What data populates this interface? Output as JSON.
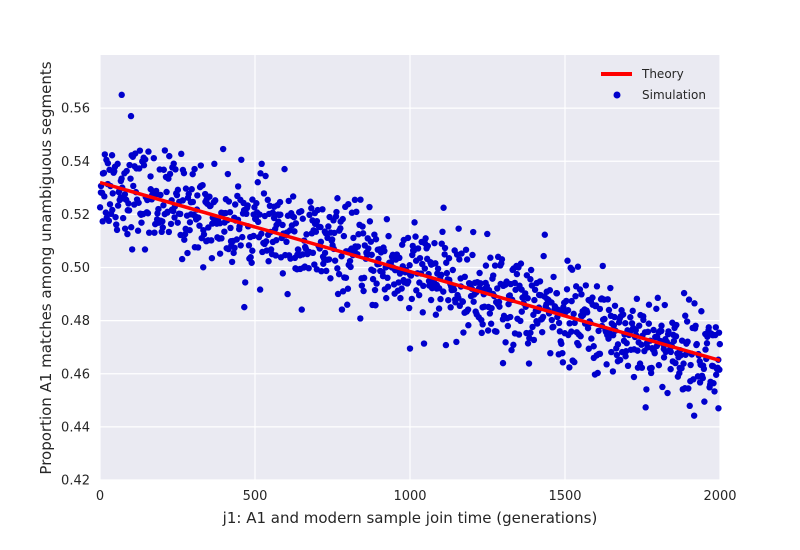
{
  "chart_data": {
    "type": "scatter",
    "xlabel": "j1: A1 and modern sample join time (generations)",
    "ylabel": "Proportion A1 matches among unambiguous segments",
    "xlim": [
      0,
      2000
    ],
    "ylim": [
      0.42,
      0.58
    ],
    "x_ticks": [
      0,
      500,
      1000,
      1500,
      2000
    ],
    "y_ticks": [
      0.42,
      0.44,
      0.46,
      0.48,
      0.5,
      0.52,
      0.54,
      0.56
    ],
    "x_tick_labels": [
      "0",
      "500",
      "1000",
      "1500",
      "2000"
    ],
    "y_tick_labels": [
      "0.42",
      "0.44",
      "0.46",
      "0.48",
      "0.50",
      "0.52",
      "0.54",
      "0.56"
    ],
    "grid": true,
    "legend_position": "top-right",
    "series": [
      {
        "name": "Theory",
        "kind": "line",
        "color": "#ff0000",
        "x": [
          0,
          2000
        ],
        "y": [
          0.532,
          0.465
        ]
      },
      {
        "name": "Simulation",
        "kind": "scatter",
        "color": "#0000cc",
        "point_count": 1000,
        "x_range": [
          0,
          2000
        ],
        "trend": {
          "y_at_x_min": 0.532,
          "y_at_x_max": 0.465
        },
        "spread_sd": 0.009,
        "notable_points": [
          {
            "x": 70,
            "y": 0.565
          },
          {
            "x": 100,
            "y": 0.557
          },
          {
            "x": 1000,
            "y": 0.4695
          },
          {
            "x": 1300,
            "y": 0.464
          },
          {
            "x": 1995,
            "y": 0.447
          }
        ]
      }
    ]
  }
}
